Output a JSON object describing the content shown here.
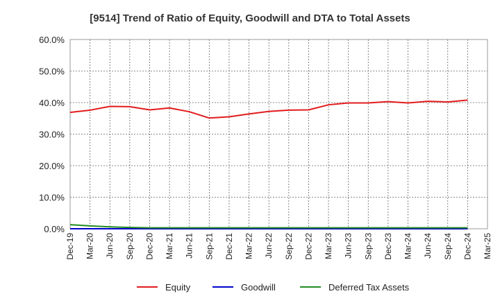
{
  "chart_data": {
    "type": "line",
    "title": "[9514]  Trend of Ratio of Equity, Goodwill and DTA to Total Assets",
    "xlabel": "",
    "ylabel": "",
    "ylim": [
      0,
      60
    ],
    "yticks": [
      "0.0%",
      "10.0%",
      "20.0%",
      "30.0%",
      "40.0%",
      "50.0%",
      "60.0%"
    ],
    "categories": [
      "Dec-19",
      "Mar-20",
      "Jun-20",
      "Sep-20",
      "Dec-20",
      "Mar-21",
      "Jun-21",
      "Sep-21",
      "Dec-21",
      "Mar-22",
      "Jun-22",
      "Sep-22",
      "Dec-22",
      "Mar-23",
      "Jun-23",
      "Sep-23",
      "Dec-23",
      "Mar-24",
      "Jun-24",
      "Sep-24",
      "Dec-24",
      "Mar-25"
    ],
    "grid": true,
    "legend_position": "bottom",
    "series": [
      {
        "name": "Equity",
        "color": "#e31a1c",
        "values": [
          36.9,
          37.6,
          38.8,
          38.7,
          37.7,
          38.3,
          37.1,
          35.1,
          35.5,
          36.4,
          37.2,
          37.6,
          37.7,
          39.3,
          39.9,
          39.9,
          40.3,
          39.9,
          40.4,
          40.2,
          40.8,
          null
        ]
      },
      {
        "name": "Goodwill",
        "color": "#0000cc",
        "values": [
          0.0,
          0.0,
          0.0,
          0.0,
          0.0,
          0.0,
          0.0,
          0.0,
          0.0,
          0.0,
          0.0,
          0.0,
          0.0,
          0.0,
          0.0,
          0.0,
          0.0,
          0.0,
          0.0,
          0.0,
          0.0,
          null
        ]
      },
      {
        "name": "Deferred Tax Assets",
        "color": "#228b22",
        "values": [
          1.3,
          0.9,
          0.6,
          0.4,
          0.3,
          0.3,
          0.3,
          0.3,
          0.3,
          0.3,
          0.3,
          0.3,
          0.3,
          0.3,
          0.3,
          0.3,
          0.3,
          0.3,
          0.3,
          0.3,
          0.3,
          null
        ]
      }
    ]
  }
}
